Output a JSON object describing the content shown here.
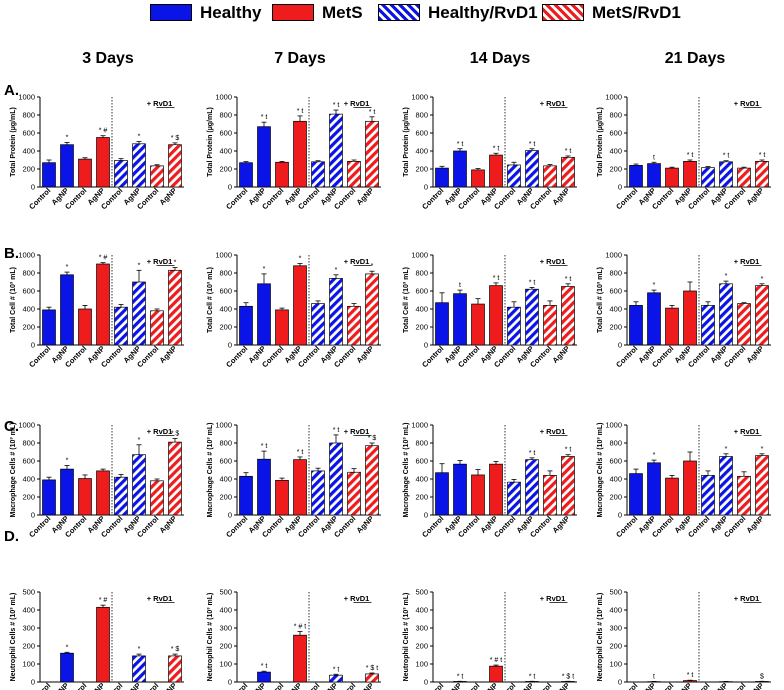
{
  "legend": [
    {
      "label": "Healthy",
      "color": "#0a14e6",
      "pattern": "solid"
    },
    {
      "label": "MetS",
      "color": "#ee1c1c",
      "pattern": "solid"
    },
    {
      "label": "Healthy/RvD1",
      "color": "#0a14e6",
      "pattern": "hatched"
    },
    {
      "label": "MetS/RvD1",
      "color": "#ee1c1c",
      "pattern": "hatched"
    }
  ],
  "columns": [
    "3 Days",
    "7 Days",
    "14 Days",
    "21 Days"
  ],
  "row_letters": [
    "A.",
    "B.",
    "C.",
    "D."
  ],
  "colors": {
    "healthy": "#0a14e6",
    "mets": "#ee1c1c"
  },
  "categories": [
    "Control",
    "AgNP",
    "Control",
    "AgNP",
    "Control",
    "AgNP",
    "Control",
    "AgNP"
  ],
  "chart_data": [
    {
      "type": "bar",
      "row": 0,
      "col": 0,
      "ylabel": "Total Protein (µg/mL)",
      "ylim": [
        0,
        1000
      ],
      "ticks": [
        0,
        200,
        400,
        600,
        800,
        1000
      ],
      "rvd1_label": "+ RvD1",
      "values": [
        270,
        470,
        310,
        550,
        295,
        480,
        235,
        470
      ],
      "errors": [
        30,
        25,
        15,
        20,
        20,
        25,
        12,
        20
      ],
      "annotations": [
        "",
        "*",
        "",
        "* #",
        "",
        "*",
        "",
        "* $"
      ]
    },
    {
      "type": "bar",
      "row": 0,
      "col": 1,
      "ylabel": "Total Protein (µg/mL)",
      "ylim": [
        0,
        1000
      ],
      "ticks": [
        0,
        200,
        400,
        600,
        800,
        1000
      ],
      "rvd1_label": "+ RvD1",
      "values": [
        270,
        670,
        275,
        730,
        280,
        810,
        285,
        730
      ],
      "errors": [
        12,
        50,
        8,
        60,
        12,
        45,
        15,
        50
      ],
      "annotations": [
        "",
        "* t",
        "",
        "* t",
        "",
        "* t",
        "",
        "* t"
      ]
    },
    {
      "type": "bar",
      "row": 0,
      "col": 2,
      "ylabel": "Total Protein (µg/mL)",
      "ylim": [
        0,
        1000
      ],
      "ticks": [
        0,
        200,
        400,
        600,
        800,
        1000
      ],
      "rvd1_label": "+ RvD1",
      "values": [
        210,
        400,
        190,
        355,
        245,
        405,
        235,
        330
      ],
      "errors": [
        20,
        25,
        15,
        20,
        30,
        20,
        15,
        15
      ],
      "annotations": [
        "",
        "* t",
        "",
        "* t",
        "",
        "* t",
        "",
        "* t"
      ]
    },
    {
      "type": "bar",
      "row": 0,
      "col": 3,
      "ylabel": "Total Protein (µg/mL)",
      "ylim": [
        0,
        1000
      ],
      "ticks": [
        0,
        200,
        400,
        600,
        800,
        1000
      ],
      "rvd1_label": "+ RvD1",
      "values": [
        240,
        260,
        210,
        285,
        215,
        280,
        210,
        285
      ],
      "errors": [
        15,
        15,
        10,
        15,
        12,
        12,
        10,
        15
      ],
      "annotations": [
        "",
        "t",
        "",
        "* t",
        "",
        "* t",
        "",
        "* t"
      ]
    },
    {
      "type": "bar",
      "row": 1,
      "col": 0,
      "ylabel": "Total Cell # (10³ mL)",
      "ylim": [
        0,
        1000
      ],
      "ticks": [
        0,
        200,
        400,
        600,
        800,
        1000
      ],
      "rvd1_label": "+ RvD1",
      "values": [
        390,
        780,
        400,
        900,
        420,
        700,
        380,
        830
      ],
      "errors": [
        30,
        30,
        40,
        15,
        30,
        130,
        20,
        30
      ],
      "annotations": [
        "",
        "*",
        "",
        "* #",
        "",
        "*",
        "",
        "*"
      ]
    },
    {
      "type": "bar",
      "row": 1,
      "col": 1,
      "ylabel": "Total Cell # (10³ mL)",
      "ylim": [
        0,
        1000
      ],
      "ticks": [
        0,
        200,
        400,
        600,
        800,
        1000
      ],
      "rvd1_label": "+ RvD1",
      "values": [
        430,
        680,
        390,
        880,
        460,
        740,
        430,
        790
      ],
      "errors": [
        40,
        110,
        20,
        25,
        30,
        40,
        30,
        30
      ],
      "annotations": [
        "",
        "*",
        "",
        "*",
        "",
        "*",
        "",
        "*"
      ]
    },
    {
      "type": "bar",
      "row": 1,
      "col": 2,
      "ylabel": "Total Cell # (10³ mL)",
      "ylim": [
        0,
        1000
      ],
      "ticks": [
        0,
        200,
        400,
        600,
        800,
        1000
      ],
      "rvd1_label": "+ RvD1",
      "values": [
        470,
        570,
        455,
        660,
        420,
        620,
        440,
        650
      ],
      "errors": [
        110,
        40,
        60,
        30,
        60,
        20,
        50,
        30
      ],
      "annotations": [
        "",
        "t",
        "",
        "* t",
        "",
        "* t",
        "",
        "* t"
      ]
    },
    {
      "type": "bar",
      "row": 1,
      "col": 3,
      "ylabel": "Total Cell # (10³ mL)",
      "ylim": [
        0,
        1000
      ],
      "ticks": [
        0,
        200,
        400,
        600,
        800,
        1000
      ],
      "rvd1_label": "+ RvD1",
      "values": [
        440,
        580,
        410,
        600,
        440,
        680,
        460,
        660
      ],
      "errors": [
        40,
        30,
        30,
        100,
        40,
        30,
        10,
        20
      ],
      "annotations": [
        "",
        "*",
        "",
        "",
        "",
        "*",
        "",
        "*"
      ]
    },
    {
      "type": "bar",
      "row": 2,
      "col": 0,
      "ylabel": "Macrophage Cells # (10³ mL)",
      "ylim": [
        0,
        1000
      ],
      "ticks": [
        0,
        200,
        400,
        600,
        800,
        1000
      ],
      "rvd1_label": "+ RvD1",
      "values": [
        390,
        510,
        405,
        490,
        420,
        670,
        380,
        810
      ],
      "errors": [
        30,
        40,
        40,
        20,
        30,
        110,
        20,
        40
      ],
      "annotations": [
        "",
        "*",
        "",
        "",
        "",
        "*",
        "",
        "* $"
      ]
    },
    {
      "type": "bar",
      "row": 2,
      "col": 1,
      "ylabel": "Macrophage Cells # (10³ mL)",
      "ylim": [
        0,
        1000
      ],
      "ticks": [
        0,
        200,
        400,
        600,
        800,
        1000
      ],
      "rvd1_label": "+ RvD1",
      "values": [
        430,
        620,
        385,
        615,
        490,
        800,
        475,
        770
      ],
      "errors": [
        40,
        90,
        25,
        30,
        30,
        90,
        40,
        30
      ],
      "annotations": [
        "",
        "* t",
        "",
        "* t",
        "",
        "* t",
        "",
        "* $"
      ]
    },
    {
      "type": "bar",
      "row": 2,
      "col": 2,
      "ylabel": "Macrophage Cells # (10³ mL)",
      "ylim": [
        0,
        1000
      ],
      "ticks": [
        0,
        200,
        400,
        600,
        800,
        1000
      ],
      "rvd1_label": "+ RvD1",
      "values": [
        470,
        565,
        445,
        565,
        365,
        615,
        440,
        650
      ],
      "errors": [
        100,
        40,
        60,
        30,
        30,
        20,
        50,
        20
      ],
      "annotations": [
        "",
        "",
        "",
        "",
        "",
        "* t",
        "",
        "* t"
      ]
    },
    {
      "type": "bar",
      "row": 2,
      "col": 3,
      "ylabel": "Macrophage Cells # (10³ mL)",
      "ylim": [
        0,
        1000
      ],
      "ticks": [
        0,
        200,
        400,
        600,
        800,
        1000
      ],
      "rvd1_label": "+ RvD1",
      "values": [
        460,
        580,
        410,
        600,
        440,
        650,
        430,
        660
      ],
      "errors": [
        50,
        30,
        30,
        100,
        50,
        30,
        50,
        20
      ],
      "annotations": [
        "",
        "*",
        "",
        "",
        "",
        "*",
        "",
        "*"
      ]
    },
    {
      "type": "bar",
      "row": 3,
      "col": 0,
      "ylabel": "Neutrophil Cells # (10³ mL)",
      "ylim": [
        0,
        500
      ],
      "ticks": [
        0,
        100,
        200,
        300,
        400,
        500
      ],
      "rvd1_label": "+ RvD1",
      "values": [
        0,
        160,
        0,
        415,
        0,
        145,
        0,
        145
      ],
      "errors": [
        0,
        5,
        0,
        12,
        0,
        10,
        0,
        10
      ],
      "annotations": [
        "",
        "*",
        "",
        "* #",
        "",
        "*",
        "",
        "* $"
      ]
    },
    {
      "type": "bar",
      "row": 3,
      "col": 1,
      "ylabel": "Neutrophil Cells # (10³ mL)",
      "ylim": [
        0,
        500
      ],
      "ticks": [
        0,
        100,
        200,
        300,
        400,
        500
      ],
      "rvd1_label": "+ RvD1",
      "values": [
        0,
        55,
        0,
        260,
        0,
        38,
        0,
        45
      ],
      "errors": [
        0,
        5,
        0,
        20,
        0,
        5,
        0,
        5
      ],
      "annotations": [
        "",
        "* t",
        "",
        "* # t",
        "",
        "* t",
        "",
        "* $ t"
      ]
    },
    {
      "type": "bar",
      "row": 3,
      "col": 2,
      "ylabel": "Neutrophil Cells # (10³ mL)",
      "ylim": [
        0,
        500
      ],
      "ticks": [
        0,
        100,
        200,
        300,
        400,
        500
      ],
      "rvd1_label": "+ RvD1",
      "values": [
        0,
        3,
        0,
        88,
        0,
        3,
        0,
        3
      ],
      "errors": [
        0,
        1,
        0,
        6,
        0,
        1,
        0,
        1
      ],
      "annotations": [
        "",
        "* t",
        "",
        "* # t",
        "",
        "* t",
        "",
        "* $ t"
      ]
    },
    {
      "type": "bar",
      "row": 3,
      "col": 3,
      "ylabel": "Neutrophil Cells # (10³ mL)",
      "ylim": [
        0,
        500
      ],
      "ticks": [
        0,
        100,
        200,
        300,
        400,
        500
      ],
      "rvd1_label": "+ RvD1",
      "values": [
        0,
        2,
        0,
        8,
        0,
        2,
        0,
        3
      ],
      "errors": [
        0,
        1,
        0,
        2,
        0,
        1,
        0,
        1
      ],
      "annotations": [
        "",
        "t",
        "",
        "* t",
        "",
        "",
        "",
        "$"
      ]
    }
  ]
}
